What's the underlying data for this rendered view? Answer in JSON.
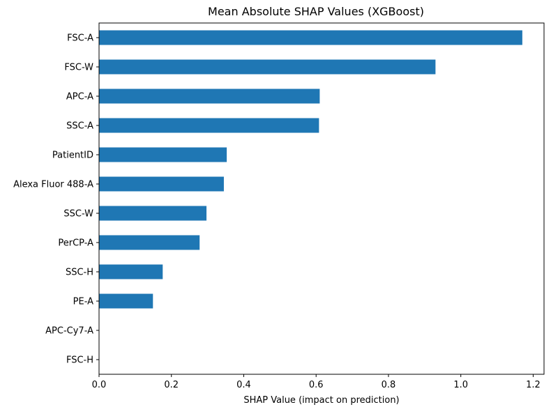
{
  "chart_data": {
    "type": "bar",
    "orientation": "horizontal",
    "title": "Mean Absolute SHAP Values (XGBoost)",
    "xlabel": "SHAP Value (impact on prediction)",
    "ylabel": "",
    "categories": [
      "FSC-A",
      "FSC-W",
      "APC-A",
      "SSC-A",
      "PatientID",
      "Alexa Fluor 488-A",
      "SSC-W",
      "PerCP-A",
      "SSC-H",
      "PE-A",
      "APC-Cy7-A",
      "FSC-H"
    ],
    "values": [
      1.17,
      0.93,
      0.61,
      0.608,
      0.353,
      0.345,
      0.297,
      0.278,
      0.176,
      0.149,
      0.0,
      0.0
    ],
    "xlim": [
      0,
      1.23
    ],
    "xticks": [
      "0.0",
      "0.2",
      "0.4",
      "0.6",
      "0.8",
      "1.0",
      "1.2"
    ],
    "bar_color": "#1f77b4",
    "grid": false,
    "legend": "none"
  }
}
